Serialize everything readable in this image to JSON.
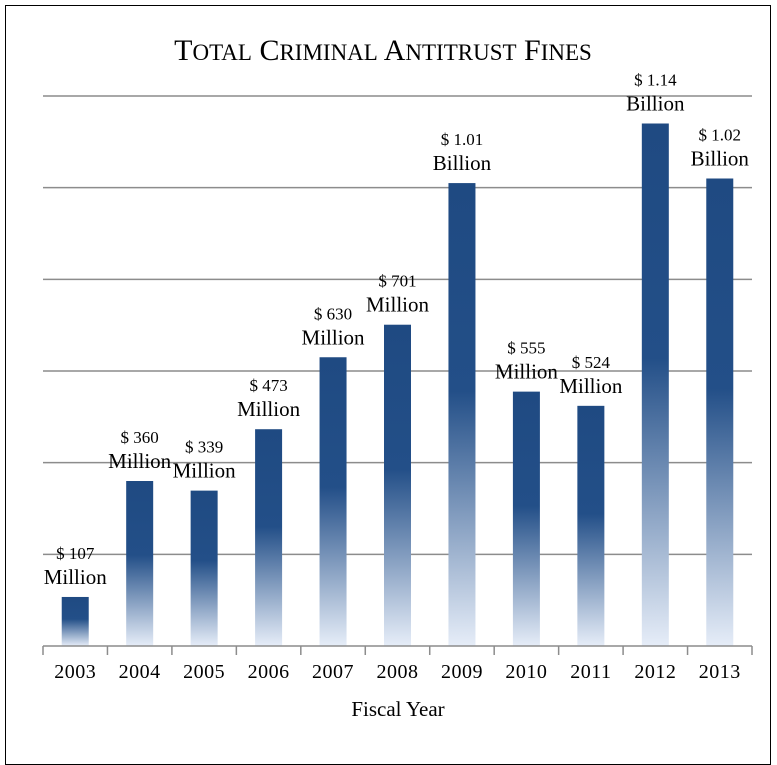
{
  "chart_data": {
    "type": "bar",
    "title": "Total Criminal Antitrust Fines",
    "xlabel": "Fiscal Year",
    "ylabel": "",
    "categories": [
      "2003",
      "2004",
      "2005",
      "2006",
      "2007",
      "2008",
      "2009",
      "2010",
      "2011",
      "2012",
      "2013"
    ],
    "values": [
      107,
      360,
      339,
      473,
      630,
      701,
      1010,
      555,
      524,
      1140,
      1020
    ],
    "units": "millions of dollars",
    "ylim": [
      0,
      1200
    ],
    "data_labels": [
      [
        "$ 107",
        "Million"
      ],
      [
        "$ 360",
        "Million"
      ],
      [
        "$ 339",
        "Million"
      ],
      [
        "$ 473",
        "Million"
      ],
      [
        "$ 630",
        "Million"
      ],
      [
        "$ 701",
        "Million"
      ],
      [
        "$ 1.01",
        "Billion"
      ],
      [
        "$ 555",
        "Million"
      ],
      [
        "$ 524",
        "Million"
      ],
      [
        "$ 1.14",
        "Billion"
      ],
      [
        "$ 1.02",
        "Billion"
      ]
    ],
    "grid": true,
    "legend": "none",
    "bar_color_top": "#1f4a82",
    "bar_color_bottom": "#e6edf8"
  }
}
